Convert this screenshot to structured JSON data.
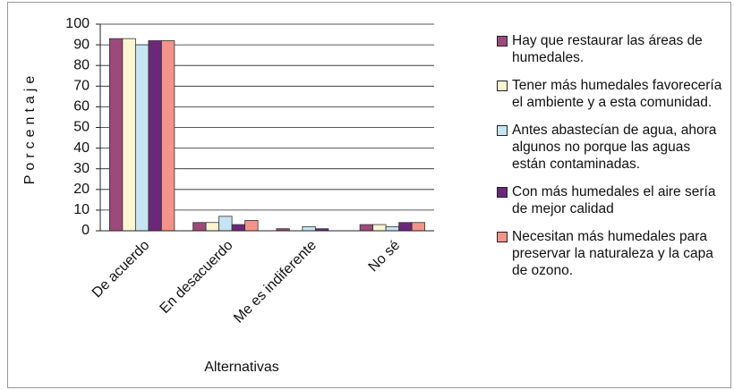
{
  "chart_data": {
    "type": "bar",
    "categories": [
      "De acuerdo",
      "En desacuerdo",
      "Me es indiferente",
      "No sé"
    ],
    "series": [
      {
        "name": "Hay que restaurar las áreas de humedales.",
        "color": "#9c4a7a",
        "values": [
          93,
          4,
          1,
          3
        ]
      },
      {
        "name": "Tener más humedales favorecería el ambiente y a esta comunidad.",
        "color": "#fbf6d2",
        "values": [
          93,
          4,
          0,
          3
        ]
      },
      {
        "name": "Antes abastecían de agua, ahora algunos no porque las aguas están contaminadas.",
        "color": "#c6e4f2",
        "values": [
          90,
          7,
          2,
          2
        ]
      },
      {
        "name": "Con más humedales el aire sería de mejor calidad",
        "color": "#6b2878",
        "values": [
          92,
          3,
          1,
          4
        ]
      },
      {
        "name": "Necesitan más humedales para preservar la naturaleza y la capa de ozono.",
        "color": "#f3948b",
        "values": [
          92,
          5,
          0,
          4
        ]
      }
    ],
    "ylabel": "Porcentaje",
    "xlabel": "Alternativas",
    "ylim": [
      0,
      100
    ],
    "yticks": [
      0,
      10,
      20,
      30,
      40,
      50,
      60,
      70,
      80,
      90,
      100
    ],
    "grid": true,
    "legend": "right"
  }
}
